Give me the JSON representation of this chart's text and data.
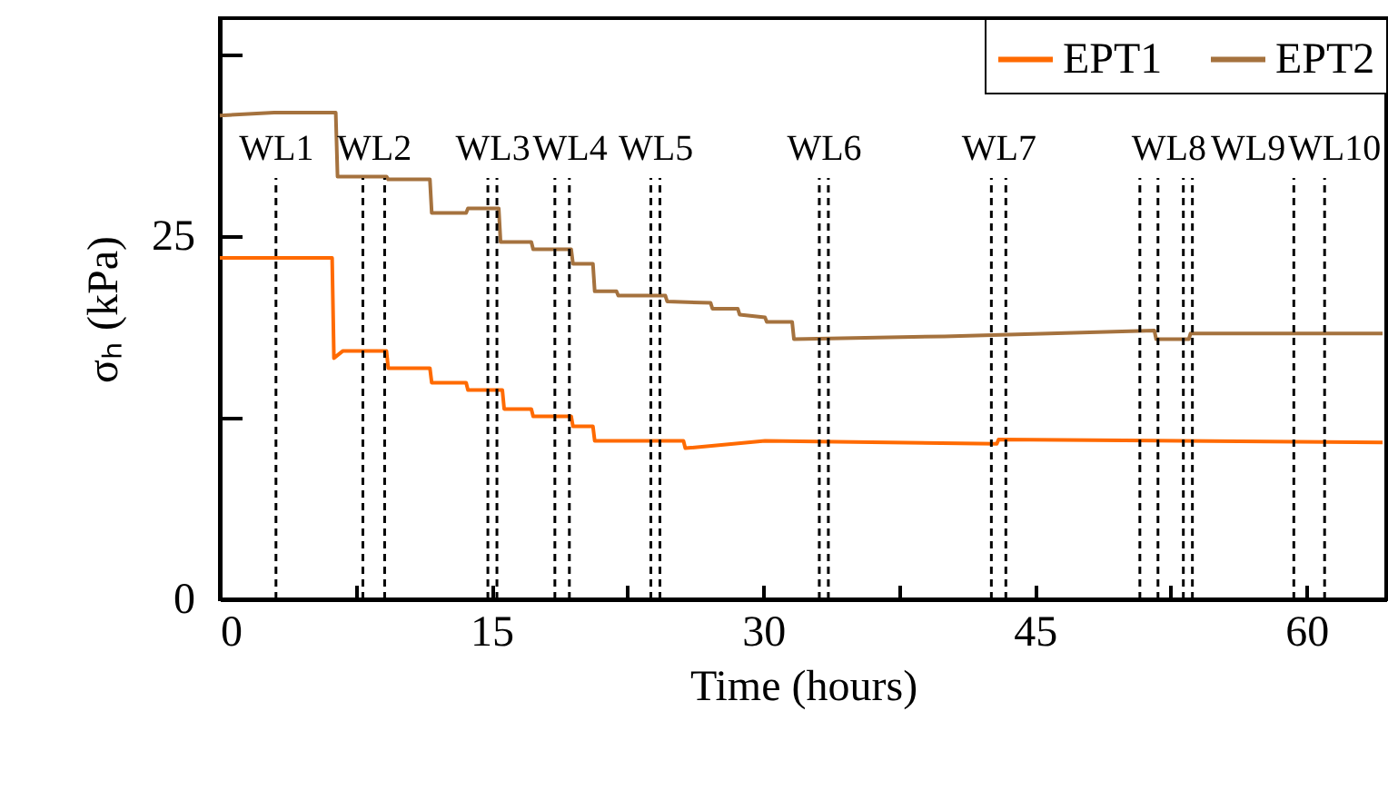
{
  "chart_data": {
    "type": "line",
    "xlabel": "Time (hours)",
    "ylabel": "σₕ (kPa)",
    "xlim": [
      0,
      64.4
    ],
    "ylim": [
      0,
      40
    ],
    "xticks": [
      0,
      {
        "value": 7.5,
        "label": null
      },
      15,
      {
        "value": 22.5,
        "label": null
      },
      30,
      {
        "value": 37.5,
        "label": null
      },
      45,
      {
        "value": 52.5,
        "label": null
      },
      60
    ],
    "yticks": [
      0,
      {
        "value": 12.5,
        "label": null
      },
      25,
      {
        "value": 37.5,
        "label": null
      }
    ],
    "grid": false,
    "legend": "top right",
    "line_style": "solid",
    "marker": "none",
    "series": [
      {
        "name": "EPT1",
        "color": "#ff6a00",
        "x": [
          0,
          6.2,
          6.3,
          6.8,
          9.2,
          9.3,
          11.6,
          11.7,
          13.6,
          13.7,
          15.6,
          15.7,
          17.2,
          17.3,
          19.4,
          19.5,
          20.6,
          20.7,
          25.6,
          25.7,
          30.1,
          42.9,
          43.0,
          64.2
        ],
        "values": [
          23.5,
          23.5,
          16.6,
          17.1,
          17.1,
          15.9,
          15.9,
          14.9,
          14.9,
          14.4,
          14.4,
          13.1,
          13.1,
          12.6,
          12.6,
          11.9,
          11.9,
          10.9,
          10.9,
          10.4,
          10.9,
          10.7,
          11.0,
          10.8
        ]
      },
      {
        "name": "EPT2",
        "color": "#a5723e",
        "x": [
          0,
          3,
          6.4,
          6.5,
          9.2,
          9.3,
          11.6,
          11.7,
          13.6,
          13.7,
          15.4,
          15.5,
          17.2,
          17.3,
          19.4,
          19.5,
          20.6,
          20.7,
          21.9,
          22.0,
          24.6,
          24.7,
          27.1,
          27.2,
          28.6,
          28.7,
          30.1,
          30.2,
          31.6,
          31.7,
          40,
          51.6,
          51.7,
          53.5,
          53.6,
          64.2
        ],
        "values": [
          33.3,
          33.5,
          33.5,
          29.1,
          29.1,
          28.9,
          28.9,
          26.6,
          26.6,
          26.9,
          26.9,
          24.6,
          24.6,
          24.1,
          24.1,
          23.1,
          23.1,
          21.2,
          21.2,
          20.9,
          20.9,
          20.5,
          20.4,
          20.0,
          20.0,
          19.6,
          19.4,
          19.1,
          19.1,
          17.9,
          18.1,
          18.5,
          17.9,
          17.9,
          18.3,
          18.3
        ]
      }
    ],
    "ref_lines": [
      {
        "axis": "x",
        "value": 3.1,
        "line_style": "dashed",
        "color": "#000000"
      },
      {
        "axis": "x",
        "value": 7.9,
        "line_style": "dashed",
        "color": "#000000"
      },
      {
        "axis": "x",
        "value": 9.1,
        "line_style": "dashed",
        "color": "#000000"
      },
      {
        "axis": "x",
        "value": 14.8,
        "line_style": "dashed",
        "color": "#000000"
      },
      {
        "axis": "x",
        "value": 15.3,
        "line_style": "dashed",
        "color": "#000000"
      },
      {
        "axis": "x",
        "value": 18.5,
        "line_style": "dashed",
        "color": "#000000"
      },
      {
        "axis": "x",
        "value": 19.3,
        "line_style": "dashed",
        "color": "#000000"
      },
      {
        "axis": "x",
        "value": 23.8,
        "line_style": "dashed",
        "color": "#000000"
      },
      {
        "axis": "x",
        "value": 24.3,
        "line_style": "dashed",
        "color": "#000000"
      },
      {
        "axis": "x",
        "value": 33.1,
        "line_style": "dashed",
        "color": "#000000"
      },
      {
        "axis": "x",
        "value": 33.6,
        "line_style": "dashed",
        "color": "#000000"
      },
      {
        "axis": "x",
        "value": 42.6,
        "line_style": "dashed",
        "color": "#000000"
      },
      {
        "axis": "x",
        "value": 43.4,
        "line_style": "dashed",
        "color": "#000000"
      },
      {
        "axis": "x",
        "value": 50.8,
        "line_style": "dashed",
        "color": "#000000"
      },
      {
        "axis": "x",
        "value": 51.8,
        "line_style": "dashed",
        "color": "#000000"
      },
      {
        "axis": "x",
        "value": 53.2,
        "line_style": "dashed",
        "color": "#000000"
      },
      {
        "axis": "x",
        "value": 53.7,
        "line_style": "dashed",
        "color": "#000000"
      },
      {
        "axis": "x",
        "value": 59.3,
        "line_style": "dashed",
        "color": "#000000"
      },
      {
        "axis": "x",
        "value": 61.0,
        "line_style": "dashed",
        "color": "#000000"
      }
    ],
    "annotations": [
      "WL1",
      "WL2",
      "WL3",
      "WL4",
      "WL5",
      "WL6",
      "WL7",
      "WL8",
      "WL9",
      "WL10"
    ]
  }
}
